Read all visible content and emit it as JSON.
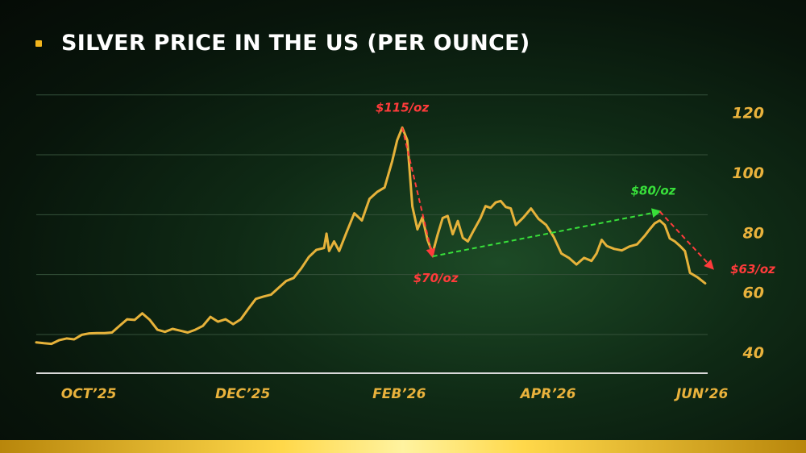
{
  "title": "SILVER PRICE IN THE US (PER OUNCE)",
  "colors": {
    "line": "#e6b23a",
    "grid": "#35513a",
    "axis": "#d9d9d9",
    "tick": "#e9b23c",
    "down": "#ff3b3b",
    "up": "#38e03a",
    "bullet": "#f2b51d",
    "gold_bar": "#f5c830"
  },
  "chart_data": {
    "type": "line",
    "title": "SILVER PRICE IN THE US (PER OUNCE)",
    "xlabel": "",
    "ylabel": "",
    "ylim": [
      33,
      128
    ],
    "xlim": [
      "2025-09-15",
      "2026-06-08"
    ],
    "y_axis_side": "right",
    "grid": true,
    "yticks": [
      40,
      60,
      80,
      100,
      120
    ],
    "xticks": [
      {
        "date": "2025-10-01",
        "label": "OCT’25"
      },
      {
        "date": "2025-12-01",
        "label": "DEC’25"
      },
      {
        "date": "2026-02-01",
        "label": "FEB’26"
      },
      {
        "date": "2026-04-01",
        "label": "APR’26"
      },
      {
        "date": "2026-06-01",
        "label": "JUN’26"
      }
    ],
    "series": [
      {
        "points": [
          [
            "2025-09-15",
            43.3
          ],
          [
            "2025-09-18",
            43.0
          ],
          [
            "2025-09-21",
            42.8
          ],
          [
            "2025-09-24",
            44.0
          ],
          [
            "2025-09-27",
            44.6
          ],
          [
            "2025-09-30",
            44.3
          ],
          [
            "2025-10-03",
            45.8
          ],
          [
            "2025-10-06",
            46.3
          ],
          [
            "2025-10-09",
            46.4
          ],
          [
            "2025-10-12",
            46.4
          ],
          [
            "2025-10-15",
            46.6
          ],
          [
            "2025-10-18",
            48.8
          ],
          [
            "2025-10-21",
            51.0
          ],
          [
            "2025-10-24",
            50.8
          ],
          [
            "2025-10-27",
            53.0
          ],
          [
            "2025-10-30",
            50.8
          ],
          [
            "2025-11-02",
            47.5
          ],
          [
            "2025-11-05",
            46.8
          ],
          [
            "2025-11-08",
            47.8
          ],
          [
            "2025-11-11",
            47.2
          ],
          [
            "2025-11-14",
            46.6
          ],
          [
            "2025-11-17",
            47.5
          ],
          [
            "2025-11-20",
            48.8
          ],
          [
            "2025-11-23",
            51.8
          ],
          [
            "2025-11-26",
            50.2
          ],
          [
            "2025-11-29",
            51.0
          ],
          [
            "2025-12-02",
            49.4
          ],
          [
            "2025-12-05",
            51.0
          ],
          [
            "2025-12-08",
            54.5
          ],
          [
            "2025-12-11",
            57.8
          ],
          [
            "2025-12-14",
            58.6
          ],
          [
            "2025-12-17",
            59.2
          ],
          [
            "2025-12-20",
            61.5
          ],
          [
            "2025-12-23",
            63.8
          ],
          [
            "2025-12-26",
            64.8
          ],
          [
            "2025-12-29",
            68.0
          ],
          [
            "2026-01-01",
            71.8
          ],
          [
            "2026-01-04",
            74.2
          ],
          [
            "2026-01-07",
            74.8
          ],
          [
            "2026-01-08",
            79.6
          ],
          [
            "2026-01-09",
            73.8
          ],
          [
            "2026-01-11",
            77.0
          ],
          [
            "2026-01-13",
            73.8
          ],
          [
            "2026-01-16",
            80.2
          ],
          [
            "2026-01-19",
            86.4
          ],
          [
            "2026-01-22",
            84.0
          ],
          [
            "2026-01-25",
            91.2
          ],
          [
            "2026-01-28",
            93.5
          ],
          [
            "2026-01-31",
            95.0
          ],
          [
            "2026-02-03",
            103.8
          ],
          [
            "2026-02-05",
            110.8
          ],
          [
            "2026-02-07",
            115.0
          ],
          [
            "2026-02-09",
            110.8
          ],
          [
            "2026-02-11",
            88.7
          ],
          [
            "2026-02-13",
            81.0
          ],
          [
            "2026-02-15",
            85.0
          ],
          [
            "2026-02-17",
            77.5
          ],
          [
            "2026-02-19",
            73.0
          ],
          [
            "2026-02-21",
            79.2
          ],
          [
            "2026-02-23",
            84.8
          ],
          [
            "2026-02-25",
            85.5
          ],
          [
            "2026-02-27",
            79.4
          ],
          [
            "2026-03-01",
            83.8
          ],
          [
            "2026-03-03",
            78.2
          ],
          [
            "2026-03-05",
            77.0
          ],
          [
            "2026-03-07",
            80.2
          ],
          [
            "2026-03-10",
            84.8
          ],
          [
            "2026-03-12",
            88.8
          ],
          [
            "2026-03-14",
            88.2
          ],
          [
            "2026-03-16",
            90.0
          ],
          [
            "2026-03-18",
            90.5
          ],
          [
            "2026-03-20",
            88.5
          ],
          [
            "2026-03-22",
            88.0
          ],
          [
            "2026-03-24",
            82.5
          ],
          [
            "2026-03-27",
            85.0
          ],
          [
            "2026-03-30",
            88.0
          ],
          [
            "2026-04-02",
            84.5
          ],
          [
            "2026-04-05",
            82.5
          ],
          [
            "2026-04-08",
            78.5
          ],
          [
            "2026-04-11",
            73.0
          ],
          [
            "2026-04-14",
            71.5
          ],
          [
            "2026-04-17",
            69.3
          ],
          [
            "2026-04-20",
            71.5
          ],
          [
            "2026-04-23",
            70.5
          ],
          [
            "2026-04-25",
            73.0
          ],
          [
            "2026-04-27",
            77.5
          ],
          [
            "2026-04-29",
            75.5
          ],
          [
            "2026-05-02",
            74.5
          ],
          [
            "2026-05-05",
            74.0
          ],
          [
            "2026-05-08",
            75.3
          ],
          [
            "2026-05-11",
            76.0
          ],
          [
            "2026-05-14",
            78.8
          ],
          [
            "2026-05-16",
            81.0
          ],
          [
            "2026-05-18",
            83.0
          ],
          [
            "2026-05-20",
            84.0
          ],
          [
            "2026-05-22",
            82.5
          ],
          [
            "2026-05-24",
            78.0
          ],
          [
            "2026-05-26",
            77.0
          ],
          [
            "2026-05-28",
            75.5
          ],
          [
            "2026-05-30",
            73.8
          ],
          [
            "2026-06-01",
            66.5
          ],
          [
            "2026-06-04",
            65.0
          ],
          [
            "2026-06-07",
            63.0
          ]
        ]
      }
    ],
    "annotations": [
      {
        "label": "$115/oz",
        "trend": "down",
        "from": [
          "2026-02-07",
          115.0
        ],
        "to": [
          "2026-02-19",
          72.0
        ]
      },
      {
        "label": "$70/oz",
        "trend": "up",
        "from": [
          "2026-02-19",
          72.0
        ],
        "to": [
          "2026-05-20",
          87.0
        ]
      },
      {
        "label": "$80/oz",
        "trend": "down",
        "from": [
          "2026-05-20",
          87.0
        ],
        "to": [
          "2026-06-10",
          68.0
        ]
      },
      {
        "label": "$63/oz",
        "trend": "none"
      }
    ]
  }
}
